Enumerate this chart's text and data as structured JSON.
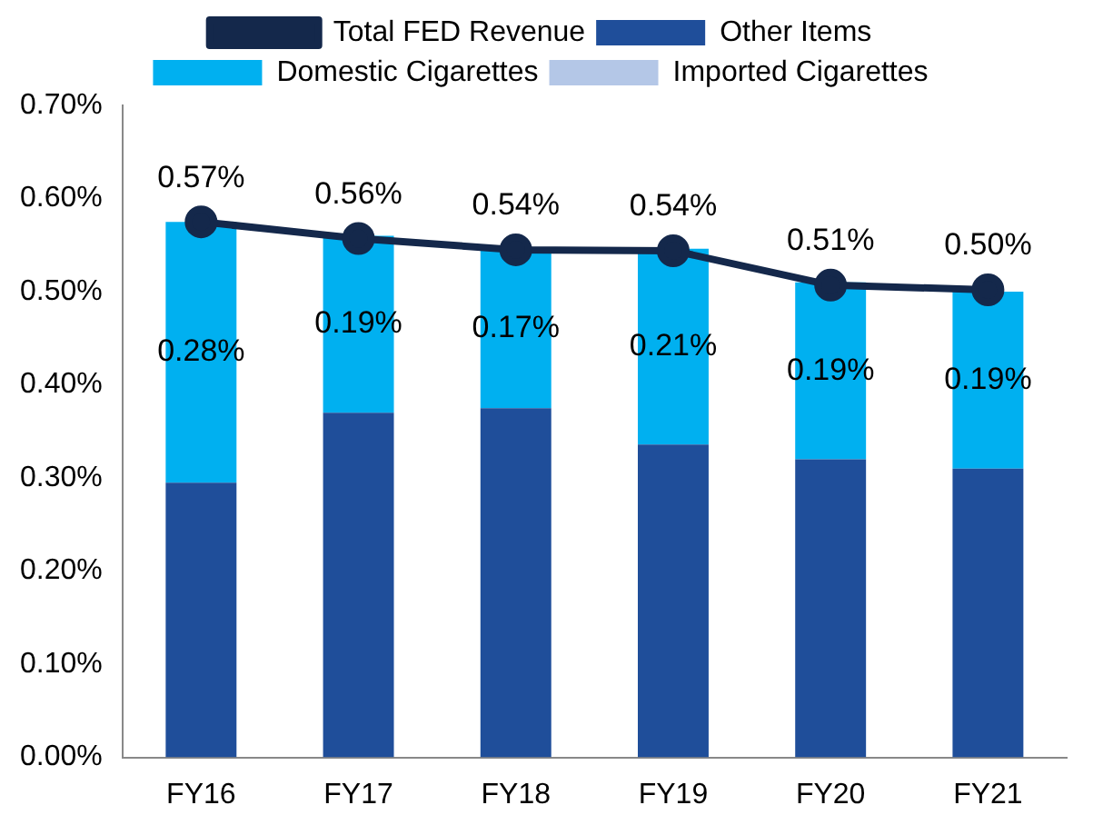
{
  "chart_data": {
    "type": "bar",
    "stacked": true,
    "categories": [
      "FY16",
      "FY17",
      "FY18",
      "FY19",
      "FY20",
      "FY21"
    ],
    "series": [
      {
        "name": "Other Items",
        "color": "#1f4e9a",
        "values": [
          0.295,
          0.37,
          0.375,
          0.336,
          0.32,
          0.31
        ]
      },
      {
        "name": "Domestic Cigarettes",
        "color": "#00b0f0",
        "values": [
          0.28,
          0.19,
          0.17,
          0.21,
          0.19,
          0.19
        ],
        "value_labels": [
          "0.28%",
          "0.19%",
          "0.17%",
          "0.21%",
          "0.19%",
          "0.19%"
        ]
      },
      {
        "name": "Imported Cigarettes",
        "color": "#b4c7e7",
        "values": [
          0,
          0,
          0,
          0,
          0,
          0
        ]
      },
      {
        "name": "Total FED Revenue",
        "type": "line",
        "color": "#14284b",
        "marker": "circle",
        "values": [
          0.575,
          0.557,
          0.545,
          0.544,
          0.507,
          0.502
        ],
        "value_labels": [
          "0.57%",
          "0.56%",
          "0.54%",
          "0.54%",
          "0.51%",
          "0.50%"
        ]
      }
    ],
    "ylim": [
      0,
      0.7
    ],
    "yticks": [
      {
        "value": 0,
        "label": "0.00%"
      },
      {
        "value": 0.1,
        "label": "0.10%"
      },
      {
        "value": 0.2,
        "label": "0.20%"
      },
      {
        "value": 0.3,
        "label": "0.30%"
      },
      {
        "value": 0.4,
        "label": "0.40%"
      },
      {
        "value": 0.5,
        "label": "0.50%"
      },
      {
        "value": 0.6,
        "label": "0.60%"
      },
      {
        "value": 0.7,
        "label": "0.70%"
      }
    ],
    "grid": false,
    "legend": "top"
  }
}
